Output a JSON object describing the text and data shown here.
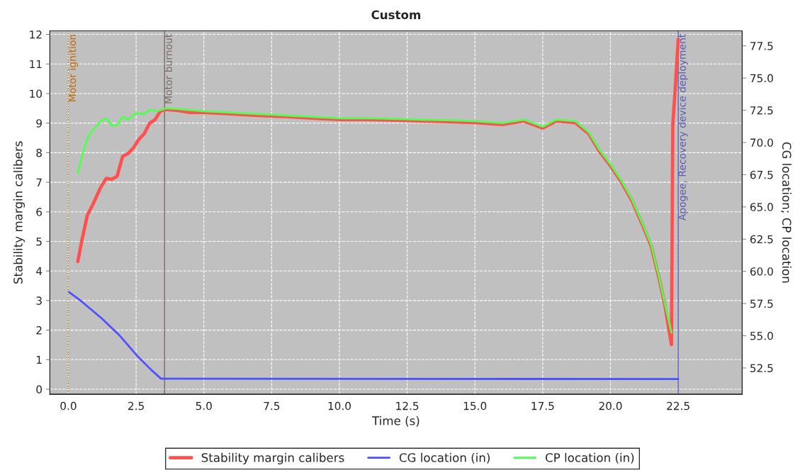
{
  "chart_data": {
    "type": "line",
    "title": "Custom",
    "xlabel": "Time (s)",
    "ylabel": "Stability margin calibers",
    "y2label": "CG location; CP location",
    "xlim": [
      -0.68,
      24.86
    ],
    "xticks": [
      {
        "value": 0,
        "label": "0.0"
      },
      {
        "value": 2.5,
        "label": "2.5"
      },
      {
        "value": 5,
        "label": "5.0"
      },
      {
        "value": 7.5,
        "label": "7.5"
      },
      {
        "value": 10,
        "label": "10.0"
      },
      {
        "value": 12.5,
        "label": "12.5"
      },
      {
        "value": 15,
        "label": "15.0"
      },
      {
        "value": 17.5,
        "label": "17.5"
      },
      {
        "value": 20,
        "label": "20.0"
      },
      {
        "value": 22.5,
        "label": "22.5"
      }
    ],
    "ylim": [
      -0.17,
      12.12
    ],
    "yticks": [
      0,
      1,
      2,
      3,
      4,
      5,
      6,
      7,
      8,
      9,
      10,
      11,
      12
    ],
    "y2lim": [
      50.46,
      78.66
    ],
    "y2ticks": [
      {
        "value": 52.5,
        "label": "52.5"
      },
      {
        "value": 55,
        "label": "55.0"
      },
      {
        "value": 57.5,
        "label": "57.5"
      },
      {
        "value": 60,
        "label": "60.0"
      },
      {
        "value": 62.5,
        "label": "62.5"
      },
      {
        "value": 65,
        "label": "65.0"
      },
      {
        "value": 67.5,
        "label": "67.5"
      },
      {
        "value": 70,
        "label": "70.0"
      },
      {
        "value": 72.5,
        "label": "72.5"
      },
      {
        "value": 75,
        "label": "75.0"
      },
      {
        "value": 77.5,
        "label": "77.5"
      }
    ],
    "grid": true,
    "legend": "bottom",
    "marker": "none",
    "line_style": "solid",
    "series": [
      {
        "name": "Stability margin calibers",
        "color": "#ff5050",
        "x": [
          0.35,
          0.5,
          0.7,
          0.9,
          1.2,
          1.4,
          1.6,
          1.8,
          2.0,
          2.2,
          2.4,
          2.6,
          2.8,
          3.0,
          3.2,
          3.4,
          3.6,
          4.0,
          4.5,
          5,
          6,
          7,
          8,
          9,
          10,
          11,
          12,
          13,
          14,
          15,
          16,
          16.8,
          17.5,
          18,
          18.7,
          19.2,
          19.6,
          20.0,
          20.4,
          20.8,
          21.2,
          21.5,
          21.8,
          22.0,
          22.25,
          22.3,
          22.4,
          22.5
        ],
        "values": [
          4.32,
          5.04,
          5.88,
          6.24,
          6.84,
          7.13,
          7.1,
          7.2,
          7.87,
          7.97,
          8.16,
          8.45,
          8.64,
          9.0,
          9.12,
          9.41,
          9.46,
          9.43,
          9.36,
          9.36,
          9.31,
          9.26,
          9.22,
          9.17,
          9.12,
          9.12,
          9.1,
          9.07,
          9.05,
          9.02,
          8.95,
          9.07,
          8.83,
          9.07,
          9.02,
          8.64,
          8.04,
          7.56,
          7.01,
          6.36,
          5.52,
          4.85,
          3.72,
          2.88,
          1.51,
          8.95,
          10.32,
          11.83
        ]
      },
      {
        "name": "CG location (in)",
        "color": "#5050ff",
        "axis": "y2",
        "x": [
          0.02,
          0.45,
          1.23,
          1.86,
          2.54,
          3.07,
          3.42,
          22.5
        ],
        "values": [
          58.39,
          57.73,
          56.35,
          55.09,
          53.44,
          52.33,
          51.67,
          51.64
        ]
      },
      {
        "name": "CP location (in)",
        "color": "#50ff50",
        "axis": "y2",
        "x": [
          0.35,
          0.5,
          0.7,
          0.9,
          1.2,
          1.4,
          1.6,
          1.8,
          2.0,
          2.2,
          2.5,
          2.8,
          3.0,
          3.3,
          3.6,
          4.0,
          5,
          6,
          7,
          8,
          9,
          10,
          11,
          12,
          13,
          14,
          15,
          16,
          16.8,
          17.5,
          18,
          18.7,
          19.2,
          19.6,
          20.0,
          20.4,
          20.8,
          21.2,
          21.5,
          21.8,
          22.0,
          22.25
        ],
        "values": [
          67.59,
          68.91,
          70.34,
          70.95,
          71.66,
          71.88,
          71.33,
          71.33,
          71.99,
          71.77,
          72.27,
          72.21,
          72.54,
          72.43,
          72.65,
          72.6,
          72.43,
          72.32,
          72.21,
          72.1,
          71.99,
          71.88,
          71.88,
          71.83,
          71.77,
          71.72,
          71.66,
          71.5,
          71.77,
          71.22,
          71.77,
          71.66,
          70.78,
          69.41,
          68.3,
          67.04,
          65.55,
          63.62,
          62.08,
          59.49,
          57.57,
          55.25
        ]
      }
    ],
    "ref_lines": [
      {
        "axis": "x",
        "value": 0,
        "label": "Motor ignition",
        "color": "#c06800",
        "line_style": "dotted"
      },
      {
        "axis": "x",
        "value": 3.55,
        "label": "Motor burnout",
        "color": "#7a6a6a",
        "line_style": "solid"
      },
      {
        "axis": "x",
        "value": 22.5,
        "label": "Apogee, Recovery device deployment",
        "color": "#5a5ab0",
        "line_style": "solid"
      }
    ]
  }
}
